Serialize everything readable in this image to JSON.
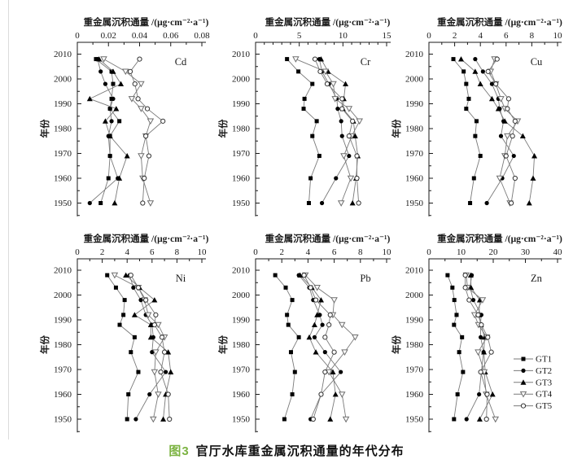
{
  "caption": {
    "number": "图3",
    "text": "官厅水库重金属沉积通量的年代分布",
    "number_color": "#7cb342",
    "text_color": "#111111"
  },
  "axis": {
    "x_title": "重金属沉积通量 /(μg·cm⁻²·a⁻¹)",
    "y_title": "年份",
    "year_major_ticks": [
      2010,
      2000,
      1990,
      1980,
      1970,
      1960,
      1950
    ],
    "year_minor_step": 5,
    "ylim": [
      1945,
      2014
    ]
  },
  "legend": {
    "position": "inside-zn-subplot-lower-right",
    "entries": [
      {
        "label": "GT1",
        "marker": "square-filled"
      },
      {
        "label": "GT2",
        "marker": "circle-filled"
      },
      {
        "label": "GT3",
        "marker": "triangle-up-filled"
      },
      {
        "label": "GT4",
        "marker": "triangle-down-open"
      },
      {
        "label": "GT5",
        "marker": "circle-open"
      }
    ]
  },
  "style": {
    "line_color": "#7a7a7a",
    "marker_fill": "#000000",
    "open_marker_fill": "#ffffff",
    "open_marker_stroke": "#6e6e6e",
    "axis_color": "#1a1a1a",
    "text_color": "#1a1a1a"
  },
  "chart_data": [
    {
      "type": "line",
      "metal": "Cd",
      "xlim": [
        0,
        0.08
      ],
      "xticks": [
        "0",
        "0.02",
        "0.04",
        "0.06",
        "0.08"
      ],
      "minor_step": 0.01,
      "years": [
        2008,
        2003,
        1998,
        1992,
        1988,
        1983,
        1977,
        1969,
        1960,
        1950
      ],
      "series": [
        {
          "name": "GT1",
          "values": [
            0.012,
            0.022,
            0.023,
            0.022,
            0.021,
            0.027,
            0.021,
            0.021,
            0.02,
            0.015
          ]
        },
        {
          "name": "GT2",
          "values": [
            0.013,
            0.015,
            0.018,
            0.023,
            0.021,
            0.022,
            0.02,
            0.021,
            0.026,
            0.008
          ]
        },
        {
          "name": "GT3",
          "values": [
            0.014,
            0.023,
            0.028,
            0.008,
            0.025,
            0.018,
            0.021,
            0.032,
            0.027,
            0.024
          ]
        },
        {
          "name": "GT4",
          "values": [
            0.017,
            0.031,
            0.041,
            0.035,
            0.041,
            0.047,
            0.044,
            0.041,
            0.042,
            0.047
          ]
        },
        {
          "name": "GT5",
          "values": [
            0.04,
            0.034,
            0.037,
            0.039,
            0.045,
            0.055,
            0.044,
            0.046,
            0.043,
            0.042
          ]
        }
      ]
    },
    {
      "type": "line",
      "metal": "Cr",
      "xlim": [
        0,
        15
      ],
      "xticks": [
        "0",
        "5",
        "10",
        "15"
      ],
      "minor_step": 1,
      "years": [
        2008,
        2003,
        1998,
        1992,
        1988,
        1983,
        1977,
        1969,
        1960,
        1950
      ],
      "series": [
        {
          "name": "GT1",
          "values": [
            3.6,
            4.9,
            6.5,
            5.6,
            5.5,
            7.0,
            6.5,
            7.3,
            6.3,
            6.1
          ]
        },
        {
          "name": "GT2",
          "values": [
            7.3,
            7.6,
            8.4,
            9.3,
            9.4,
            9.8,
            9.9,
            10.7,
            9.2,
            7.6
          ]
        },
        {
          "name": "GT3",
          "values": [
            7.5,
            8.3,
            10.3,
            10.1,
            10.0,
            11.2,
            11.4,
            11.7,
            11.5,
            11.1
          ]
        },
        {
          "name": "GT4",
          "values": [
            4.6,
            8.0,
            8.9,
            9.1,
            10.7,
            11.9,
            11.0,
            10.1,
            10.9,
            9.8
          ]
        },
        {
          "name": "GT5",
          "values": [
            6.8,
            7.4,
            8.2,
            9.9,
            9.9,
            11.1,
            10.7,
            11.6,
            11.6,
            11.8
          ]
        }
      ]
    },
    {
      "type": "line",
      "metal": "Cu",
      "xlim": [
        0,
        10
      ],
      "xticks": [
        "0",
        "2",
        "4",
        "6",
        "8",
        "10"
      ],
      "minor_step": 1,
      "years": [
        2008,
        2003,
        1998,
        1992,
        1988,
        1983,
        1977,
        1969,
        1960,
        1950
      ],
      "series": [
        {
          "name": "GT1",
          "values": [
            1.9,
            2.7,
            2.9,
            3.1,
            2.9,
            3.7,
            3.6,
            4.0,
            3.5,
            3.2
          ]
        },
        {
          "name": "GT2",
          "values": [
            3.6,
            4.2,
            4.9,
            5.4,
            5.5,
            5.8,
            5.6,
            6.6,
            5.7,
            4.5
          ]
        },
        {
          "name": "GT3",
          "values": [
            2.5,
            3.6,
            4.0,
            4.9,
            5.4,
            5.9,
            7.3,
            8.2,
            8.1,
            7.8
          ]
        },
        {
          "name": "GT4",
          "values": [
            5.1,
            4.8,
            5.2,
            5.6,
            5.9,
            6.9,
            6.1,
            5.9,
            5.5,
            6.3
          ]
        },
        {
          "name": "GT5",
          "values": [
            5.3,
            4.6,
            5.2,
            6.2,
            6.1,
            6.7,
            6.5,
            6.0,
            6.7,
            6.4
          ]
        }
      ]
    },
    {
      "type": "line",
      "metal": "Ni",
      "xlim": [
        0,
        10
      ],
      "xticks": [
        "0",
        "2",
        "4",
        "6",
        "8",
        "10"
      ],
      "minor_step": 1,
      "years": [
        2008,
        2003,
        1998,
        1992,
        1988,
        1983,
        1977,
        1969,
        1960,
        1950
      ],
      "series": [
        {
          "name": "GT1",
          "values": [
            2.4,
            3.1,
            3.8,
            3.7,
            3.4,
            4.6,
            4.3,
            4.9,
            4.1,
            4.0
          ]
        },
        {
          "name": "GT2",
          "values": [
            4.2,
            4.5,
            5.1,
            5.5,
            6.0,
            6.1,
            6.0,
            7.1,
            5.8,
            4.7
          ]
        },
        {
          "name": "GT3",
          "values": [
            3.9,
            5.0,
            6.2,
            4.6,
            5.9,
            5.9,
            7.3,
            7.5,
            7.1,
            6.9
          ]
        },
        {
          "name": "GT4",
          "values": [
            3.0,
            4.9,
            5.4,
            5.7,
            6.5,
            7.0,
            6.3,
            6.2,
            6.5,
            6.1
          ]
        },
        {
          "name": "GT5",
          "values": [
            4.3,
            4.9,
            5.5,
            6.3,
            6.2,
            6.8,
            7.0,
            6.7,
            7.3,
            7.4
          ]
        }
      ]
    },
    {
      "type": "line",
      "metal": "Pb",
      "xlim": [
        0,
        10
      ],
      "xticks": [
        "0",
        "2",
        "4",
        "6",
        "8",
        "10"
      ],
      "minor_step": 1,
      "years": [
        2008,
        2003,
        1998,
        1992,
        1988,
        1983,
        1977,
        1969,
        1960,
        1950
      ],
      "series": [
        {
          "name": "GT1",
          "values": [
            1.5,
            2.3,
            2.8,
            2.4,
            2.5,
            3.3,
            2.7,
            3.0,
            2.8,
            2.2
          ]
        },
        {
          "name": "GT2",
          "values": [
            3.3,
            4.1,
            4.4,
            4.9,
            5.1,
            4.5,
            5.3,
            6.5,
            5.0,
            4.2
          ]
        },
        {
          "name": "GT3",
          "values": [
            3.4,
            4.3,
            5.0,
            4.7,
            4.5,
            4.1,
            4.6,
            5.9,
            6.1,
            5.7
          ]
        },
        {
          "name": "GT4",
          "values": [
            3.8,
            4.7,
            6.0,
            5.9,
            6.6,
            7.6,
            6.8,
            5.6,
            6.6,
            6.9
          ]
        },
        {
          "name": "GT5",
          "values": [
            3.7,
            4.2,
            4.6,
            5.7,
            5.6,
            5.3,
            6.0,
            5.3,
            5.0,
            4.4
          ]
        }
      ]
    },
    {
      "type": "line",
      "metal": "Zn",
      "xlim": [
        0,
        40
      ],
      "xticks": [
        "0",
        "10",
        "20",
        "30",
        "40"
      ],
      "minor_step": 5,
      "years": [
        2008,
        2003,
        1998,
        1992,
        1988,
        1983,
        1977,
        1969,
        1960,
        1950
      ],
      "series": [
        {
          "name": "GT1",
          "values": [
            5.8,
            7.3,
            7.9,
            8.6,
            7.8,
            10.3,
            9.4,
            10.6,
            8.9,
            7.8
          ]
        },
        {
          "name": "GT2",
          "values": [
            13.3,
            12.8,
            13.8,
            16.3,
            16.0,
            16.1,
            17.0,
            16.3,
            15.6,
            11.7
          ]
        },
        {
          "name": "GT3",
          "values": [
            13.0,
            13.1,
            15.8,
            15.6,
            16.2,
            17.3,
            17.1,
            17.5,
            19.8,
            15.8
          ]
        },
        {
          "name": "GT4",
          "values": [
            11.6,
            12.0,
            16.7,
            14.2,
            15.4,
            18.0,
            15.3,
            17.2,
            17.8,
            20.7
          ]
        },
        {
          "name": "GT5",
          "values": [
            11.3,
            11.3,
            12.5,
            15.3,
            16.3,
            18.3,
            19.4,
            16.1,
            18.1,
            17.9
          ]
        }
      ]
    }
  ]
}
